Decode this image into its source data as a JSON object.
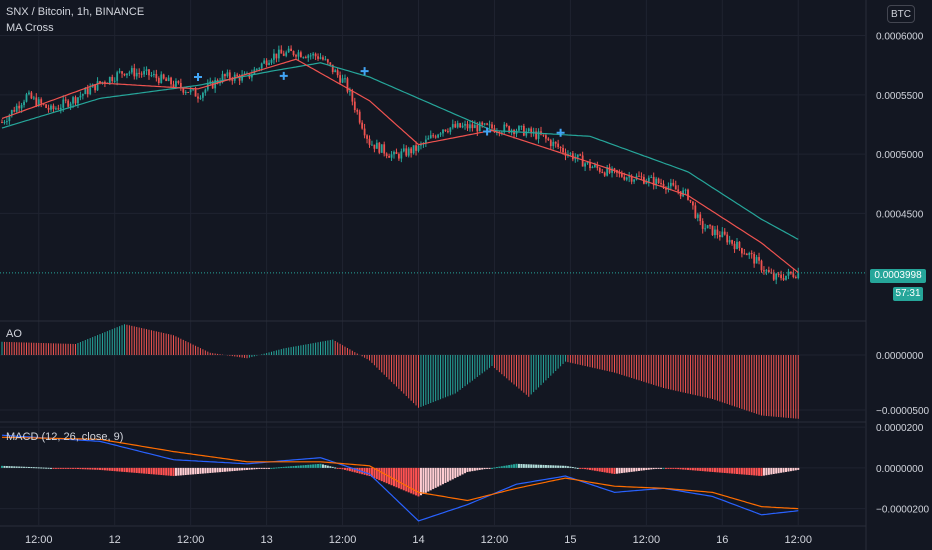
{
  "header": {
    "symbol_title": "SNX / Bitcoin, 1h, BINANCE",
    "indicator_label": "MA Cross",
    "currency_button": "BTC",
    "last_price": "0.0003998",
    "countdown": "57:31"
  },
  "colors": {
    "background": "#131722",
    "grid": "#1f2330",
    "up": "#26a69a",
    "down": "#ef5350",
    "ma_fast": "#ef5350",
    "ma_slow": "#26a69a",
    "macd_line": "#2962ff",
    "signal_line": "#ff6d00",
    "text": "#d1d4dc"
  },
  "chart_data": [
    {
      "type": "candlestick",
      "title": "SNX / Bitcoin, 1h, BINANCE",
      "indicator": "MA Cross",
      "ylim": [
        0.00036,
        0.00063
      ],
      "y_ticks": [
        "0.0006000",
        "0.0005500",
        "0.0005000",
        "0.0004500"
      ],
      "last_price": 0.0003998,
      "x_ticks": [
        "12:00",
        "12",
        "12:00",
        "13",
        "12:00",
        "14",
        "12:00",
        "15",
        "12:00",
        "16",
        "12:00"
      ],
      "close_anchors": [
        [
          0,
          0.000527
        ],
        [
          10,
          0.000549
        ],
        [
          20,
          0.000537
        ],
        [
          30,
          0.000547
        ],
        [
          40,
          0.00056
        ],
        [
          50,
          0.00057
        ],
        [
          60,
          0.000567
        ],
        [
          70,
          0.000559
        ],
        [
          80,
          0.00055
        ],
        [
          90,
          0.000565
        ],
        [
          100,
          0.000565
        ],
        [
          110,
          0.000583
        ],
        [
          120,
          0.000586
        ],
        [
          130,
          0.000582
        ],
        [
          140,
          0.00056
        ],
        [
          150,
          0.00051
        ],
        [
          160,
          0.000498
        ],
        [
          170,
          0.000505
        ],
        [
          180,
          0.000522
        ],
        [
          190,
          0.000523
        ],
        [
          200,
          0.000522
        ],
        [
          210,
          0.000521
        ],
        [
          220,
          0.000515
        ],
        [
          230,
          0.000502
        ],
        [
          240,
          0.00049
        ],
        [
          250,
          0.000483
        ],
        [
          260,
          0.00048
        ],
        [
          270,
          0.000475
        ],
        [
          280,
          0.000465
        ],
        [
          285,
          0.00044
        ],
        [
          295,
          0.00043
        ],
        [
          305,
          0.000415
        ],
        [
          315,
          0.000395
        ],
        [
          325,
          0.0004
        ]
      ],
      "ma_fast": [
        [
          0,
          0.00053
        ],
        [
          40,
          0.00056
        ],
        [
          80,
          0.000555
        ],
        [
          120,
          0.00058
        ],
        [
          150,
          0.000545
        ],
        [
          170,
          0.000508
        ],
        [
          200,
          0.00052
        ],
        [
          240,
          0.000493
        ],
        [
          280,
          0.000465
        ],
        [
          310,
          0.000425
        ],
        [
          325,
          0.0004
        ]
      ],
      "ma_slow": [
        [
          0,
          0.000522
        ],
        [
          40,
          0.000547
        ],
        [
          80,
          0.000558
        ],
        [
          110,
          0.00057
        ],
        [
          130,
          0.000577
        ],
        [
          150,
          0.000565
        ],
        [
          200,
          0.00052
        ],
        [
          240,
          0.000515
        ],
        [
          280,
          0.000485
        ],
        [
          310,
          0.000445
        ],
        [
          325,
          0.000428
        ]
      ],
      "cross_markers": [
        [
          80,
          0.000565
        ],
        [
          115,
          0.000566
        ],
        [
          148,
          0.00057
        ],
        [
          198,
          0.000519
        ],
        [
          228,
          0.000518
        ]
      ]
    },
    {
      "type": "bar",
      "title": "AO",
      "y_ticks": [
        "0.0000000",
        "−0.0000500"
      ],
      "ylim": [
        -6e-05,
        3e-05
      ],
      "values_anchors": [
        [
          0,
          1.2e-05
        ],
        [
          30,
          1e-05
        ],
        [
          50,
          2.8e-05
        ],
        [
          70,
          1.8e-05
        ],
        [
          85,
          2e-06
        ],
        [
          100,
          -3e-06
        ],
        [
          115,
          6e-06
        ],
        [
          135,
          1.4e-05
        ],
        [
          150,
          -5e-06
        ],
        [
          170,
          -4.8e-05
        ],
        [
          185,
          -3.5e-05
        ],
        [
          200,
          -1e-05
        ],
        [
          215,
          -3.8e-05
        ],
        [
          230,
          -6e-06
        ],
        [
          250,
          -1.6e-05
        ],
        [
          270,
          -3e-05
        ],
        [
          290,
          -4e-05
        ],
        [
          310,
          -5.5e-05
        ],
        [
          325,
          -5.8e-05
        ]
      ]
    },
    {
      "type": "line",
      "title": "MACD (12, 26, close, 9)",
      "y_ticks": [
        "0.0000200",
        "0.0000000",
        "−0.0000200"
      ],
      "ylim": [
        -2.8e-05,
        2.2e-05
      ],
      "series": [
        {
          "values_anchors": [
            [
              0,
              1.6e-05
            ],
            [
              40,
              1.3e-05
            ],
            [
              70,
              4e-06
            ],
            [
              100,
              2e-06
            ],
            [
              130,
              5e-06
            ],
            [
              150,
              -3e-06
            ],
            [
              170,
              -2.6e-05
            ],
            [
              190,
              -1.8e-05
            ],
            [
              210,
              -8e-06
            ],
            [
              230,
              -4e-06
            ],
            [
              250,
              -1.2e-05
            ],
            [
              270,
              -1e-05
            ],
            [
              290,
              -1.4e-05
            ],
            [
              310,
              -2.3e-05
            ],
            [
              325,
              -2.1e-05
            ]
          ]
        },
        {
          "values_anchors": [
            [
              0,
              1.5e-05
            ],
            [
              40,
              1.4e-05
            ],
            [
              70,
              8e-06
            ],
            [
              100,
              3e-06
            ],
            [
              130,
              3e-06
            ],
            [
              150,
              1e-06
            ],
            [
              170,
              -1.2e-05
            ],
            [
              190,
              -1.6e-05
            ],
            [
              210,
              -1e-05
            ],
            [
              230,
              -5e-06
            ],
            [
              250,
              -9e-06
            ],
            [
              270,
              -1e-05
            ],
            [
              290,
              -1.2e-05
            ],
            [
              310,
              -1.9e-05
            ],
            [
              325,
              -2e-05
            ]
          ]
        }
      ]
    }
  ]
}
